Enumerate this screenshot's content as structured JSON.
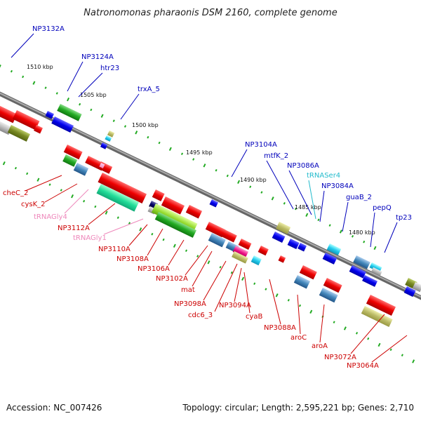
{
  "title": "Natronomonas pharaonis DSM 2160, complete genome",
  "footer": {
    "accession": "Accession: NC_007426",
    "topology": "Topology: circular; Length: 2,595,221 bp; Genes: 2,710"
  },
  "scale_labels": [
    "1510 kbp",
    "1505 kbp",
    "1500 kbp",
    "1495 kbp",
    "1490 kbp",
    "1485 kbp",
    "1480 kbp"
  ],
  "colors": {
    "forward_label": "#0000bb",
    "reverse_label": "#cc0000",
    "trna_label": "#ee88bb",
    "trnaser_label": "#22bbcc",
    "backbone": "#888888"
  },
  "upper_labels": [
    {
      "text": "NP3132A",
      "cls": "fwd"
    },
    {
      "text": "NP3124A",
      "cls": "fwd"
    },
    {
      "text": "htr23",
      "cls": "fwd"
    },
    {
      "text": "trxA_5",
      "cls": "fwd"
    },
    {
      "text": "NP3104A",
      "cls": "fwd"
    },
    {
      "text": "mtfK_2",
      "cls": "fwd"
    },
    {
      "text": "NP3086A",
      "cls": "fwd"
    },
    {
      "text": "tRNASer4",
      "cls": "trnaser"
    },
    {
      "text": "NP3084A",
      "cls": "fwd"
    },
    {
      "text": "guaB_2",
      "cls": "fwd"
    },
    {
      "text": "pepQ",
      "cls": "fwd"
    },
    {
      "text": "tp23",
      "cls": "fwd"
    }
  ],
  "lower_labels": [
    {
      "text": "cheC_2",
      "cls": "rev"
    },
    {
      "text": "cysK_2",
      "cls": "rev"
    },
    {
      "text": "tRNAGly4",
      "cls": "trna"
    },
    {
      "text": "NP3112A",
      "cls": "rev"
    },
    {
      "text": "tRNAGly1",
      "cls": "trna"
    },
    {
      "text": "NP3110A",
      "cls": "rev"
    },
    {
      "text": "NP3108A",
      "cls": "rev"
    },
    {
      "text": "NP3106A",
      "cls": "rev"
    },
    {
      "text": "NP3102A",
      "cls": "rev"
    },
    {
      "text": "mat",
      "cls": "rev"
    },
    {
      "text": "NP3098A",
      "cls": "rev"
    },
    {
      "text": "cdc6_3",
      "cls": "rev"
    },
    {
      "text": "NP3094A",
      "cls": "rev"
    },
    {
      "text": "cyaB",
      "cls": "rev"
    },
    {
      "text": "NP3088A",
      "cls": "rev"
    },
    {
      "text": "aroC",
      "cls": "rev"
    },
    {
      "text": "aroA",
      "cls": "rev"
    },
    {
      "text": "NP3072A",
      "cls": "rev"
    },
    {
      "text": "NP3064A",
      "cls": "rev"
    }
  ]
}
